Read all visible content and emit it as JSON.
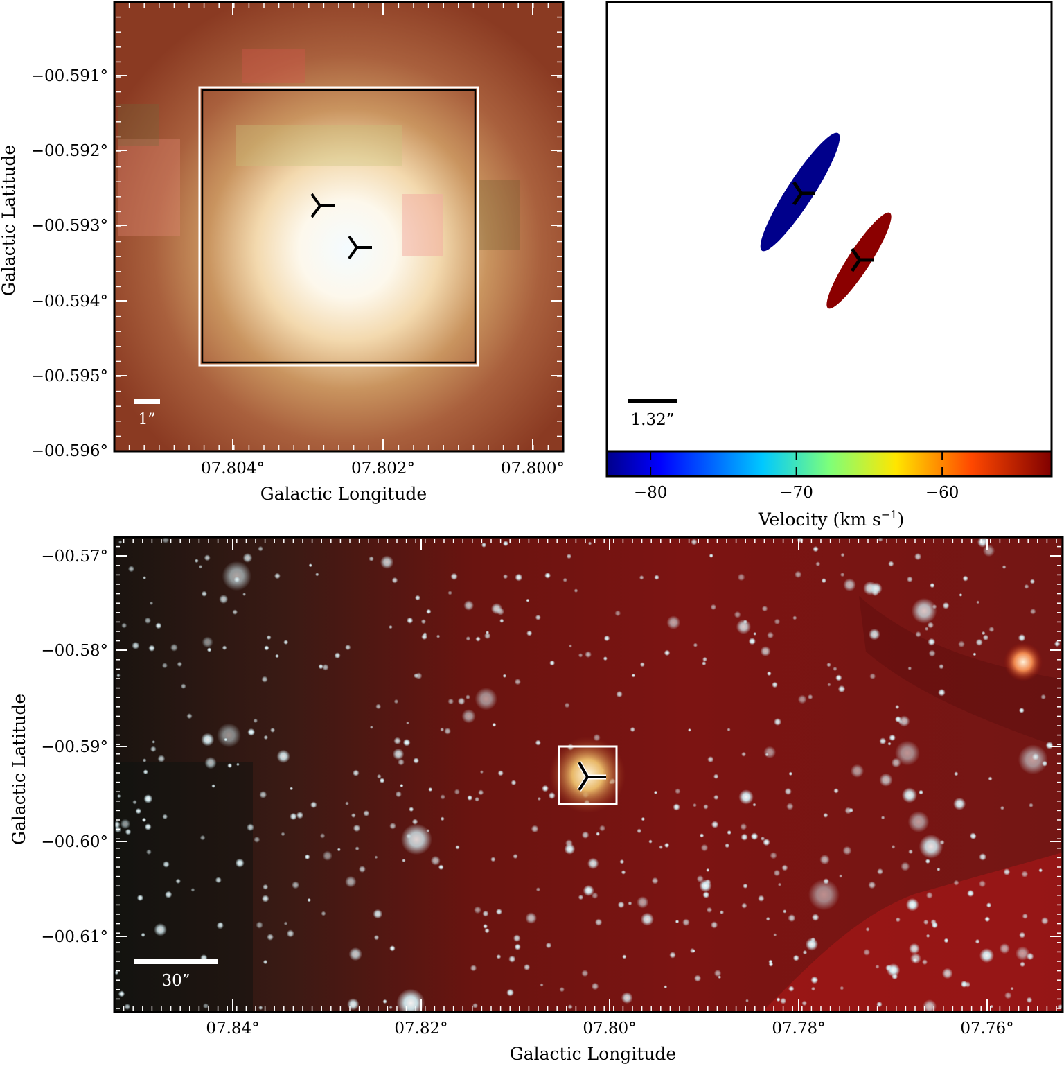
{
  "figure": {
    "panel_a": {
      "xlabel": "Galactic Longitude",
      "ylabel": "Galactic Latitude",
      "xticks": [
        "07.804°",
        "07.802°",
        "07.800°"
      ],
      "yticks": [
        "−00.591°",
        "−00.592°",
        "−00.593°",
        "−00.594°",
        "−00.595°",
        "−00.596°"
      ],
      "scalebar_label": "1”"
    },
    "panel_b": {
      "scalebar_label": "1.32”",
      "colorbar_label": "Velocity (km s",
      "colorbar_label_sup": "−1",
      "colorbar_label_end": ")",
      "colorbar_ticks": [
        "−80",
        "−70",
        "−60"
      ],
      "colorbar_tick_values": [
        -80,
        -70,
        -60
      ],
      "colorbar_range": [
        -83,
        -52.5
      ],
      "components": [
        {
          "velocity": -82,
          "color": "#00008b"
        },
        {
          "velocity": -54,
          "color": "#8b0000"
        }
      ]
    },
    "panel_c": {
      "xlabel": "Galactic Longitude",
      "ylabel": "Galactic Latitude",
      "xticks": [
        "07.84°",
        "07.82°",
        "07.80°",
        "07.78°",
        "07.76°"
      ],
      "yticks": [
        "−00.57°",
        "−00.58°",
        "−00.59°",
        "−00.60°",
        "−00.61°"
      ],
      "scalebar_label": "30”"
    }
  }
}
